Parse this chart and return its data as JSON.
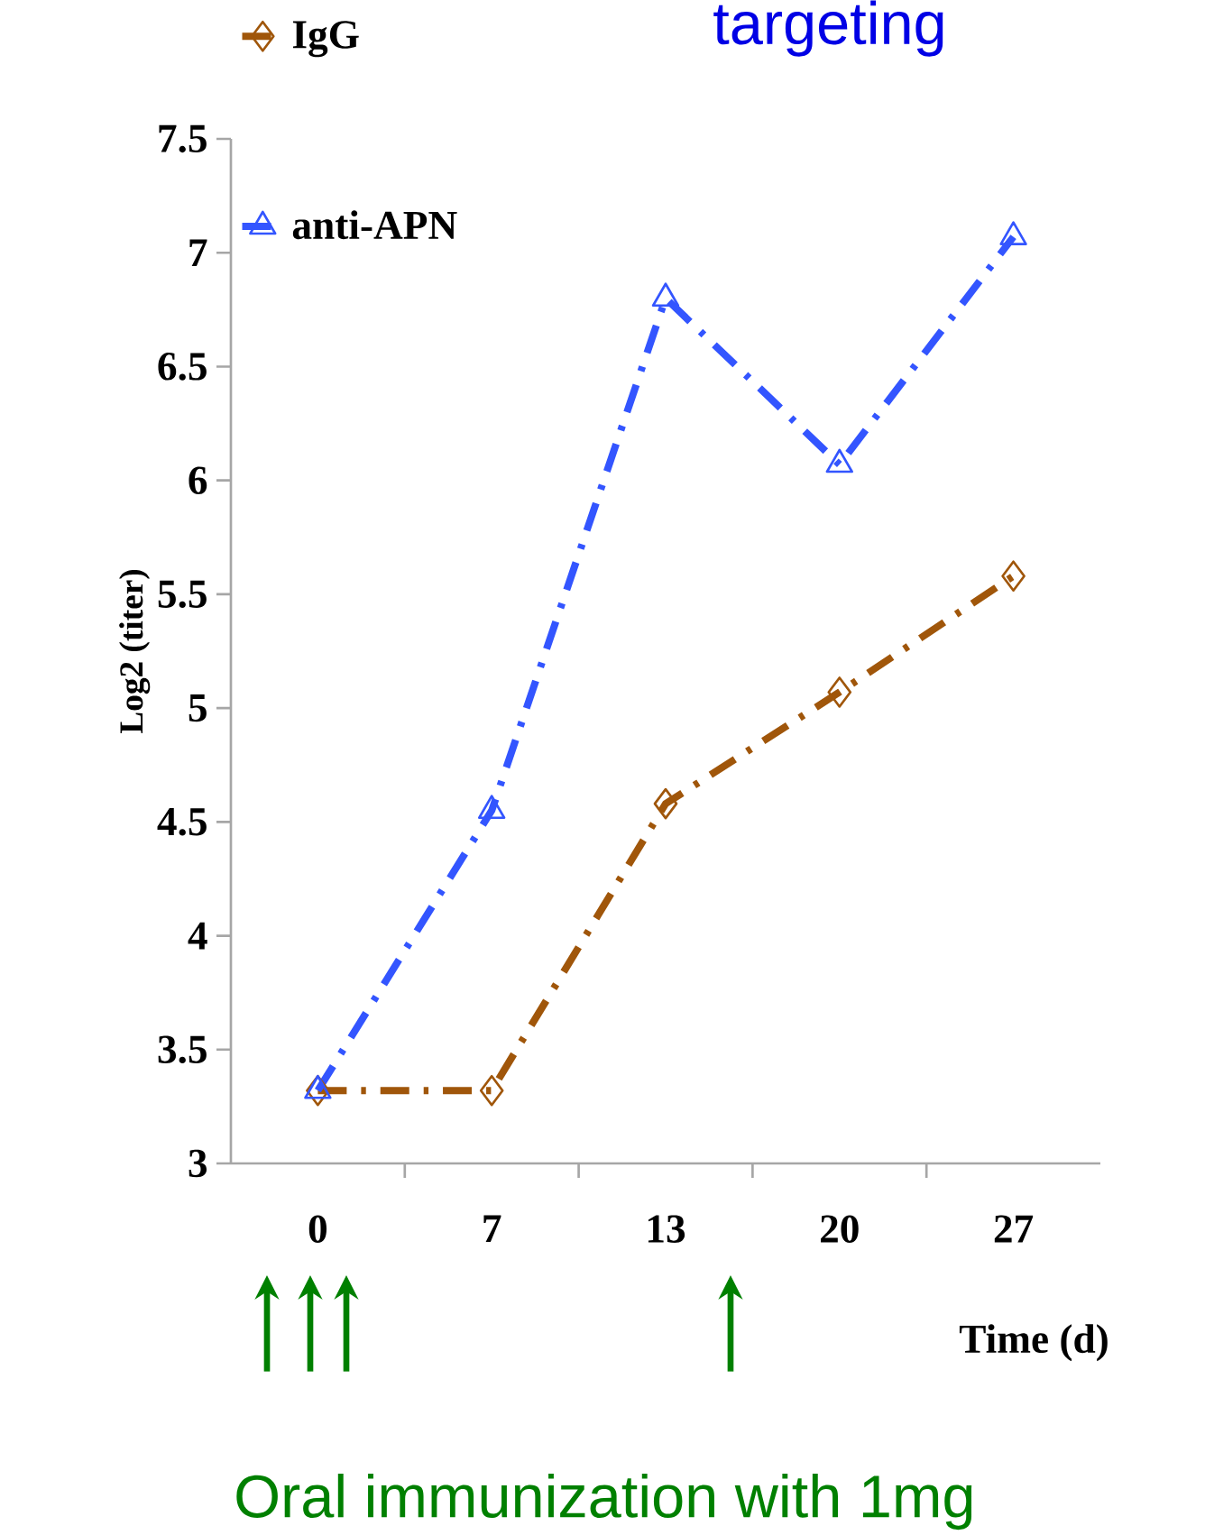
{
  "chart_data": {
    "type": "line",
    "xlabel": "Time (d)",
    "ylabel": "Log2 (titer)",
    "categories": [
      "0",
      "7",
      "13",
      "20",
      "27"
    ],
    "series": [
      {
        "name": "IgG",
        "color": "#a0560a",
        "marker": "diamond",
        "values": [
          3.32,
          3.32,
          4.58,
          5.07,
          5.58
        ]
      },
      {
        "name": "anti-APN",
        "color": "#3355ff",
        "marker": "triangle",
        "values": [
          3.32,
          4.55,
          6.8,
          6.07,
          7.07
        ]
      }
    ],
    "ylim": [
      3,
      7.5
    ],
    "yticks": [
      3,
      3.5,
      4,
      4.5,
      5,
      5.5,
      6,
      6.5,
      7,
      7.5
    ],
    "legend": "top left",
    "line_style": "dashed",
    "grid": false,
    "annotations": [
      "targeting",
      "Oral immunization with 1mg"
    ]
  }
}
